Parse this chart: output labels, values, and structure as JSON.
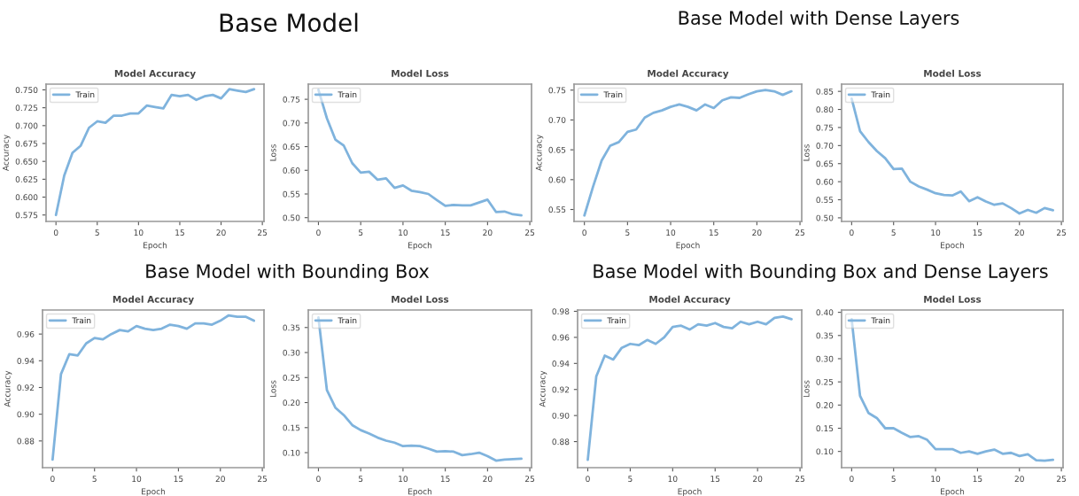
{
  "chart_data": [
    {
      "type": "line",
      "title": "Model Accuracy",
      "annotations": [
        "Base Model"
      ],
      "xlabel": "Epoch",
      "ylabel": "Accuracy",
      "x": [
        0,
        1,
        2,
        3,
        4,
        5,
        6,
        7,
        8,
        9,
        10,
        11,
        12,
        13,
        14,
        15,
        16,
        17,
        18,
        19,
        20,
        21,
        22,
        23,
        24
      ],
      "xlim": [
        -1.2,
        25.2
      ],
      "xticks": [
        0,
        5,
        10,
        15,
        20,
        25
      ],
      "ylim": [
        0.566,
        0.758
      ],
      "yticks": [
        0.575,
        {
          "value": 0.6,
          "label": "0.600"
        },
        0.625,
        {
          "value": 0.65,
          "label": "0.650"
        },
        0.675,
        {
          "value": 0.7,
          "label": "0.700"
        },
        0.725,
        {
          "value": 0.75,
          "label": "0.750"
        }
      ],
      "legend": "top left",
      "grid": false,
      "series": [
        {
          "name": "Train",
          "color": "#7fb3dd",
          "values": [
            0.575,
            0.63,
            0.662,
            0.672,
            0.697,
            0.706,
            0.704,
            0.714,
            0.714,
            0.717,
            0.717,
            0.728,
            0.726,
            0.724,
            0.743,
            0.741,
            0.743,
            0.736,
            0.741,
            0.743,
            0.738,
            0.751,
            0.749,
            0.747,
            0.751
          ]
        }
      ]
    },
    {
      "type": "line",
      "title": "Model Loss",
      "xlabel": "Epoch",
      "ylabel": "Loss",
      "x": [
        0,
        1,
        2,
        3,
        4,
        5,
        6,
        7,
        8,
        9,
        10,
        11,
        12,
        13,
        14,
        15,
        16,
        17,
        18,
        19,
        20,
        21,
        22,
        23,
        24
      ],
      "xlim": [
        -1.2,
        25.2
      ],
      "xticks": [
        0,
        5,
        10,
        15,
        20,
        25
      ],
      "ylim": [
        0.492,
        0.782
      ],
      "yticks": [
        {
          "value": 0.5,
          "label": "0.50"
        },
        0.55,
        {
          "value": 0.6,
          "label": "0.60"
        },
        0.65,
        {
          "value": 0.7,
          "label": "0.70"
        },
        0.75
      ],
      "legend": "top left",
      "grid": false,
      "series": [
        {
          "name": "Train",
          "color": "#7fb3dd",
          "values": [
            0.77,
            0.71,
            0.665,
            0.652,
            0.615,
            0.595,
            0.597,
            0.58,
            0.583,
            0.563,
            0.568,
            0.557,
            0.554,
            0.55,
            0.537,
            0.525,
            0.527,
            0.526,
            0.526,
            0.532,
            0.538,
            0.512,
            0.513,
            0.507,
            0.505
          ]
        }
      ]
    },
    {
      "type": "line",
      "title": "Model Accuracy",
      "annotations": [
        "Base Model with Dense Layers"
      ],
      "xlabel": "Epoch",
      "ylabel": "Accuracy",
      "x": [
        0,
        1,
        2,
        3,
        4,
        5,
        6,
        7,
        8,
        9,
        10,
        11,
        12,
        13,
        14,
        15,
        16,
        17,
        18,
        19,
        20,
        21,
        22,
        23,
        24
      ],
      "xlim": [
        -1.2,
        25.2
      ],
      "xticks": [
        0,
        5,
        10,
        15,
        20,
        25
      ],
      "ylim": [
        0.53,
        0.76
      ],
      "yticks": [
        0.55,
        {
          "value": 0.6,
          "label": "0.60"
        },
        0.65,
        {
          "value": 0.7,
          "label": "0.70"
        },
        0.75
      ],
      "legend": "top left",
      "grid": false,
      "series": [
        {
          "name": "Train",
          "color": "#7fb3dd",
          "values": [
            0.54,
            0.588,
            0.632,
            0.657,
            0.663,
            0.68,
            0.684,
            0.704,
            0.712,
            0.716,
            0.722,
            0.726,
            0.722,
            0.716,
            0.726,
            0.72,
            0.733,
            0.738,
            0.737,
            0.743,
            0.748,
            0.75,
            0.748,
            0.742,
            0.748
          ]
        }
      ]
    },
    {
      "type": "line",
      "title": "Model Loss",
      "xlabel": "Epoch",
      "ylabel": "Loss",
      "x": [
        0,
        1,
        2,
        3,
        4,
        5,
        6,
        7,
        8,
        9,
        10,
        11,
        12,
        13,
        14,
        15,
        16,
        17,
        18,
        19,
        20,
        21,
        22,
        23,
        24
      ],
      "xlim": [
        -1.2,
        25.2
      ],
      "xticks": [
        0,
        5,
        10,
        15,
        20,
        25
      ],
      "ylim": [
        0.49,
        0.87
      ],
      "yticks": [
        {
          "value": 0.5,
          "label": "0.50"
        },
        0.55,
        {
          "value": 0.6,
          "label": "0.60"
        },
        0.65,
        {
          "value": 0.7,
          "label": "0.70"
        },
        0.75,
        {
          "value": 0.8,
          "label": "0.80"
        },
        0.85
      ],
      "legend": "top left",
      "grid": false,
      "series": [
        {
          "name": "Train",
          "color": "#7fb3dd",
          "values": [
            0.83,
            0.74,
            0.71,
            0.685,
            0.665,
            0.635,
            0.636,
            0.6,
            0.587,
            0.578,
            0.568,
            0.563,
            0.562,
            0.573,
            0.546,
            0.557,
            0.545,
            0.536,
            0.54,
            0.527,
            0.512,
            0.522,
            0.514,
            0.527,
            0.521
          ]
        }
      ]
    },
    {
      "type": "line",
      "title": "Model Accuracy",
      "annotations": [
        "Base Model with Bounding Box"
      ],
      "xlabel": "Epoch",
      "ylabel": "Accuracy",
      "x": [
        0,
        1,
        2,
        3,
        4,
        5,
        6,
        7,
        8,
        9,
        10,
        11,
        12,
        13,
        14,
        15,
        16,
        17,
        18,
        19,
        20,
        21,
        22,
        23,
        24
      ],
      "xlim": [
        -1.2,
        25.2
      ],
      "xticks": [
        0,
        5,
        10,
        15,
        20,
        25
      ],
      "ylim": [
        0.86,
        0.978
      ],
      "yticks": [
        0.88,
        {
          "value": 0.9,
          "label": "0.90"
        },
        0.92,
        0.94,
        0.96
      ],
      "legend": "top left",
      "grid": false,
      "series": [
        {
          "name": "Train",
          "color": "#7fb3dd",
          "values": [
            0.866,
            0.93,
            0.945,
            0.944,
            0.953,
            0.957,
            0.956,
            0.96,
            0.963,
            0.962,
            0.966,
            0.964,
            0.963,
            0.964,
            0.967,
            0.966,
            0.964,
            0.968,
            0.968,
            0.967,
            0.97,
            0.974,
            0.973,
            0.973,
            0.97
          ]
        }
      ]
    },
    {
      "type": "line",
      "title": "Model Loss",
      "xlabel": "Epoch",
      "ylabel": "Loss",
      "x": [
        0,
        1,
        2,
        3,
        4,
        5,
        6,
        7,
        8,
        9,
        10,
        11,
        12,
        13,
        14,
        15,
        16,
        17,
        18,
        19,
        20,
        21,
        22,
        23,
        24
      ],
      "xlim": [
        -1.2,
        25.2
      ],
      "xticks": [
        0,
        5,
        10,
        15,
        20,
        25
      ],
      "ylim": [
        0.07,
        0.385
      ],
      "yticks": [
        {
          "value": 0.1,
          "label": "0.10"
        },
        0.15,
        {
          "value": 0.2,
          "label": "0.20"
        },
        0.25,
        {
          "value": 0.3,
          "label": "0.30"
        },
        0.35
      ],
      "legend": "top left",
      "grid": false,
      "series": [
        {
          "name": "Train",
          "color": "#7fb3dd",
          "values": [
            0.37,
            0.225,
            0.19,
            0.175,
            0.155,
            0.145,
            0.138,
            0.13,
            0.124,
            0.12,
            0.113,
            0.114,
            0.113,
            0.108,
            0.102,
            0.103,
            0.102,
            0.095,
            0.097,
            0.1,
            0.093,
            0.084,
            0.086,
            0.087,
            0.088
          ]
        }
      ]
    },
    {
      "type": "line",
      "title": "Model Accuracy",
      "annotations": [
        "Base Model with Bounding Box and Dense Layers"
      ],
      "xlabel": "Epoch",
      "ylabel": "Accuracy",
      "x": [
        0,
        1,
        2,
        3,
        4,
        5,
        6,
        7,
        8,
        9,
        10,
        11,
        12,
        13,
        14,
        15,
        16,
        17,
        18,
        19,
        20,
        21,
        22,
        23,
        24
      ],
      "xlim": [
        -1.2,
        25.2
      ],
      "xticks": [
        0,
        5,
        10,
        15,
        20,
        25
      ],
      "ylim": [
        0.86,
        0.981
      ],
      "yticks": [
        0.88,
        {
          "value": 0.9,
          "label": "0.90"
        },
        0.92,
        0.94,
        0.96,
        0.98
      ],
      "legend": "top left",
      "grid": false,
      "series": [
        {
          "name": "Train",
          "color": "#7fb3dd",
          "values": [
            0.866,
            0.93,
            0.946,
            0.943,
            0.952,
            0.955,
            0.954,
            0.958,
            0.955,
            0.96,
            0.968,
            0.969,
            0.966,
            0.97,
            0.969,
            0.971,
            0.968,
            0.967,
            0.972,
            0.97,
            0.972,
            0.97,
            0.975,
            0.976,
            0.974
          ]
        }
      ]
    },
    {
      "type": "line",
      "title": "Model Loss",
      "xlabel": "Epoch",
      "ylabel": "Loss",
      "x": [
        0,
        1,
        2,
        3,
        4,
        5,
        6,
        7,
        8,
        9,
        10,
        11,
        12,
        13,
        14,
        15,
        16,
        17,
        18,
        19,
        20,
        21,
        22,
        23,
        24
      ],
      "xlim": [
        -1.2,
        25.2
      ],
      "xticks": [
        0,
        5,
        10,
        15,
        20,
        25
      ],
      "ylim": [
        0.065,
        0.405
      ],
      "yticks": [
        {
          "value": 0.1,
          "label": "0.10"
        },
        0.15,
        {
          "value": 0.2,
          "label": "0.20"
        },
        0.25,
        {
          "value": 0.3,
          "label": "0.30"
        },
        0.35,
        {
          "value": 0.4,
          "label": "0.40"
        }
      ],
      "legend": "top left",
      "grid": false,
      "series": [
        {
          "name": "Train",
          "color": "#7fb3dd",
          "values": [
            0.385,
            0.22,
            0.183,
            0.172,
            0.15,
            0.15,
            0.14,
            0.131,
            0.133,
            0.125,
            0.105,
            0.105,
            0.105,
            0.097,
            0.1,
            0.095,
            0.1,
            0.104,
            0.095,
            0.097,
            0.09,
            0.094,
            0.081,
            0.08,
            0.082
          ]
        }
      ]
    }
  ]
}
